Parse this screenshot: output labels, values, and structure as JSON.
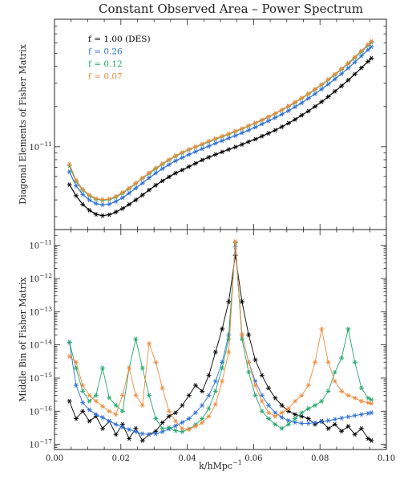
{
  "chart_data": [
    {
      "type": "line",
      "title": "Constant Observed Area – Power Spectrum",
      "xlabel": "",
      "ylabel": "Diagonal Elements of Fisher Matrix",
      "yscale": "log",
      "xlim": [
        0.0,
        0.1
      ],
      "ylim": [
        2.4e-12,
        9e-11
      ],
      "y_tick_labels": [
        {
          "value": 1e-11,
          "mantissa": "10",
          "exponent": "−11"
        }
      ],
      "grid": false,
      "legend": "top-left",
      "x": [
        0.0045,
        0.0065,
        0.0085,
        0.0105,
        0.0125,
        0.0145,
        0.0165,
        0.0185,
        0.0205,
        0.0225,
        0.0245,
        0.0265,
        0.0285,
        0.0305,
        0.0325,
        0.0345,
        0.0365,
        0.0385,
        0.0405,
        0.0425,
        0.0445,
        0.0465,
        0.0485,
        0.0505,
        0.0525,
        0.0545,
        0.0565,
        0.0585,
        0.0605,
        0.0625,
        0.0645,
        0.0665,
        0.0685,
        0.0705,
        0.0725,
        0.0745,
        0.0765,
        0.0785,
        0.0805,
        0.0825,
        0.0845,
        0.0865,
        0.0885,
        0.0905,
        0.0925,
        0.0945,
        0.0955
      ],
      "series": [
        {
          "name": "f = 1.00 (DES)",
          "color": "#000000",
          "values": [
            5.2e-12,
            4.3e-12,
            3.7e-12,
            3.35e-12,
            3.12e-12,
            3.05e-12,
            3.1e-12,
            3.25e-12,
            3.45e-12,
            3.7e-12,
            4e-12,
            4.35e-12,
            4.75e-12,
            5.15e-12,
            5.55e-12,
            5.95e-12,
            6.35e-12,
            6.7e-12,
            7.1e-12,
            7.5e-12,
            7.95e-12,
            8.35e-12,
            8.75e-12,
            9.15e-12,
            9.55e-12,
            9.95e-12,
            1.04e-11,
            1.09e-11,
            1.14e-11,
            1.2e-11,
            1.26e-11,
            1.33e-11,
            1.41e-11,
            1.5e-11,
            1.6e-11,
            1.72e-11,
            1.85e-11,
            2e-11,
            2.17e-11,
            2.37e-11,
            2.6e-11,
            2.85e-11,
            3.15e-11,
            3.5e-11,
            3.9e-11,
            4.35e-11,
            4.6e-11
          ]
        },
        {
          "name": "f = 0.26",
          "color": "#2d6fd6",
          "values": [
            6.5e-12,
            5.1e-12,
            4.4e-12,
            4e-12,
            3.75e-12,
            3.68e-12,
            3.72e-12,
            3.9e-12,
            4.15e-12,
            4.5e-12,
            4.9e-12,
            5.35e-12,
            5.85e-12,
            6.35e-12,
            6.85e-12,
            7.35e-12,
            7.85e-12,
            8.3e-12,
            8.75e-12,
            9.2e-12,
            9.65e-12,
            1.01e-11,
            1.06e-11,
            1.11e-11,
            1.16e-11,
            1.21e-11,
            1.27e-11,
            1.33e-11,
            1.4e-11,
            1.48e-11,
            1.56e-11,
            1.65e-11,
            1.75e-11,
            1.86e-11,
            1.99e-11,
            2.13e-11,
            2.3e-11,
            2.49e-11,
            2.7e-11,
            2.94e-11,
            3.21e-11,
            3.52e-11,
            3.88e-11,
            4.3e-11,
            4.78e-11,
            5.32e-11,
            5.6e-11
          ]
        },
        {
          "name": "f = 0.12",
          "color": "#22a86a",
          "values": [
            7.2e-12,
            5.5e-12,
            4.75e-12,
            4.3e-12,
            4.05e-12,
            3.98e-12,
            4.02e-12,
            4.2e-12,
            4.5e-12,
            4.85e-12,
            5.3e-12,
            5.8e-12,
            6.3e-12,
            6.85e-12,
            7.4e-12,
            7.95e-12,
            8.5e-12,
            9e-12,
            9.5e-12,
            9.95e-12,
            1.04e-11,
            1.09e-11,
            1.14e-11,
            1.19e-11,
            1.24e-11,
            1.3e-11,
            1.36e-11,
            1.43e-11,
            1.5e-11,
            1.58e-11,
            1.67e-11,
            1.77e-11,
            1.88e-11,
            2e-11,
            2.14e-11,
            2.3e-11,
            2.48e-11,
            2.68e-11,
            2.91e-11,
            3.17e-11,
            3.46e-11,
            3.8e-11,
            4.18e-11,
            4.63e-11,
            5.15e-11,
            5.74e-11,
            6.05e-11
          ]
        },
        {
          "name": "f = 0.07",
          "color": "#f08a3c",
          "values": [
            7.4e-12,
            5.6e-12,
            4.8e-12,
            4.35e-12,
            4.1e-12,
            4.02e-12,
            4.07e-12,
            4.25e-12,
            4.55e-12,
            4.9e-12,
            5.35e-12,
            5.85e-12,
            6.38e-12,
            6.92e-12,
            7.47e-12,
            8.02e-12,
            8.57e-12,
            9.08e-12,
            9.57e-12,
            1e-11,
            1.05e-11,
            1.1e-11,
            1.15e-11,
            1.2e-11,
            1.25e-11,
            1.31e-11,
            1.37e-11,
            1.44e-11,
            1.51e-11,
            1.59e-11,
            1.68e-11,
            1.78e-11,
            1.89e-11,
            2.02e-11,
            2.16e-11,
            2.32e-11,
            2.5e-11,
            2.7e-11,
            2.93e-11,
            3.2e-11,
            3.5e-11,
            3.84e-11,
            4.23e-11,
            4.69e-11,
            5.22e-11,
            5.82e-11,
            6.15e-11
          ]
        }
      ]
    },
    {
      "type": "line",
      "title": "",
      "xlabel": "k/hMpc",
      "xlabel_exponent": "−1",
      "ylabel": "Middle Bin of Fisher Matrix",
      "yscale": "log",
      "xlim": [
        0.0,
        0.1
      ],
      "ylim": [
        7e-18,
        3e-11
      ],
      "x_tick_labels": [
        "0.00",
        "0.02",
        "0.04",
        "0.06",
        "0.08",
        "0.10"
      ],
      "y_tick_labels": [
        {
          "value": 1e-11,
          "mantissa": "10",
          "exponent": "−11"
        },
        {
          "value": 1e-12,
          "mantissa": "10",
          "exponent": "−12"
        },
        {
          "value": 1e-13,
          "mantissa": "10",
          "exponent": "−13"
        },
        {
          "value": 1e-14,
          "mantissa": "10",
          "exponent": "−14"
        },
        {
          "value": 1e-15,
          "mantissa": "10",
          "exponent": "−15"
        },
        {
          "value": 1e-16,
          "mantissa": "10",
          "exponent": "−16"
        },
        {
          "value": 1e-17,
          "mantissa": "10",
          "exponent": "−17"
        }
      ],
      "grid": false,
      "x": [
        0.0045,
        0.0065,
        0.0085,
        0.0105,
        0.0125,
        0.0145,
        0.0165,
        0.0185,
        0.0205,
        0.0225,
        0.0245,
        0.0265,
        0.0285,
        0.0305,
        0.0325,
        0.0345,
        0.0365,
        0.0385,
        0.0405,
        0.0425,
        0.0445,
        0.0465,
        0.0485,
        0.0505,
        0.0525,
        0.0545,
        0.0565,
        0.0585,
        0.0605,
        0.0625,
        0.0645,
        0.0665,
        0.0685,
        0.0705,
        0.0725,
        0.0745,
        0.0765,
        0.0785,
        0.0805,
        0.0825,
        0.0845,
        0.0865,
        0.0885,
        0.0905,
        0.0925,
        0.0945,
        0.0955
      ],
      "series": [
        {
          "name": "f = 1.00 (DES)",
          "color": "#000000",
          "values": [
            2e-16,
            6e-17,
            1e-16,
            5e-17,
            7e-17,
            3e-17,
            5e-17,
            2e-17,
            4e-17,
            1.5e-17,
            3e-17,
            1.3e-17,
            2e-17,
            2.5e-17,
            4.5e-17,
            7e-17,
            9e-17,
            1.5e-16,
            3e-16,
            6e-16,
            4e-16,
            1.2e-15,
            6e-15,
            3e-14,
            2e-13,
            5e-12,
            2e-13,
            2e-14,
            3.5e-15,
            1.2e-15,
            5e-16,
            2.5e-16,
            1.5e-16,
            1e-16,
            8e-17,
            7e-17,
            6e-17,
            4e-17,
            5e-17,
            3e-17,
            4e-17,
            2.5e-17,
            3.5e-17,
            2e-17,
            3e-17,
            1.5e-17,
            1.3e-17
          ]
        },
        {
          "name": "f = 0.26",
          "color": "#2d6fd6",
          "values": [
            1.2e-14,
            6e-16,
            1.8e-16,
            1.1e-16,
            8e-17,
            6.5e-17,
            5e-17,
            4e-17,
            3.3e-17,
            2.8e-17,
            2.4e-17,
            2.1e-17,
            2e-17,
            2.1e-17,
            2.4e-17,
            2.9e-17,
            3.6e-17,
            4.6e-17,
            6e-17,
            9e-17,
            1.5e-16,
            3e-16,
            8e-16,
            3e-15,
            2e-14,
            9e-12,
            2e-14,
            3e-15,
            8e-16,
            3e-16,
            1.5e-16,
            9e-17,
            6.5e-17,
            5.2e-17,
            4.6e-17,
            4.3e-17,
            4.3e-17,
            4.5e-17,
            4.8e-17,
            5.2e-17,
            5.7e-17,
            6.2e-17,
            6.8e-17,
            7.4e-17,
            8e-17,
            8.6e-17,
            9e-17
          ]
        },
        {
          "name": "f = 0.12",
          "color": "#22a86a",
          "values": [
            1.2e-14,
            2e-15,
            4e-16,
            2e-16,
            3e-16,
            2e-15,
            2.5e-16,
            1.5e-16,
            1e-16,
            2e-15,
            1.5e-14,
            2e-15,
            3e-16,
            6e-17,
            3e-17,
            3.2e-17,
            2.6e-17,
            2.4e-17,
            2.9e-17,
            3.9e-17,
            6e-17,
            1.2e-16,
            4e-16,
            2e-15,
            1.5e-14,
            1.2e-11,
            1.5e-14,
            1.5e-15,
            3e-16,
            1e-16,
            6e-17,
            4e-17,
            3e-17,
            4e-17,
            6e-17,
            9e-17,
            1.2e-16,
            1.5e-16,
            2e-16,
            4e-16,
            1.5e-15,
            4e-15,
            3e-14,
            3e-15,
            5e-16,
            2.5e-16,
            2.2e-16
          ]
        },
        {
          "name": "f = 0.07",
          "color": "#f08a3c",
          "values": [
            4.5e-15,
            3e-15,
            6e-16,
            3e-16,
            2e-16,
            1.4e-16,
            1e-16,
            8e-17,
            3e-16,
            2e-15,
            3e-16,
            1.5e-16,
            1.1e-14,
            3e-15,
            5e-16,
            1e-16,
            5e-17,
            3e-17,
            2.8e-17,
            3.5e-17,
            4.5e-17,
            7e-17,
            1.6e-16,
            8e-16,
            6e-15,
            1.3e-11,
            2e-14,
            3e-15,
            6e-16,
            2e-16,
            9e-17,
            7e-17,
            9e-17,
            1.2e-16,
            2e-16,
            3e-16,
            6e-16,
            3e-15,
            3e-14,
            3e-15,
            8e-16,
            4e-16,
            3e-16,
            2.5e-16,
            2e-16,
            1.8e-16,
            1.7e-16
          ]
        }
      ]
    }
  ]
}
